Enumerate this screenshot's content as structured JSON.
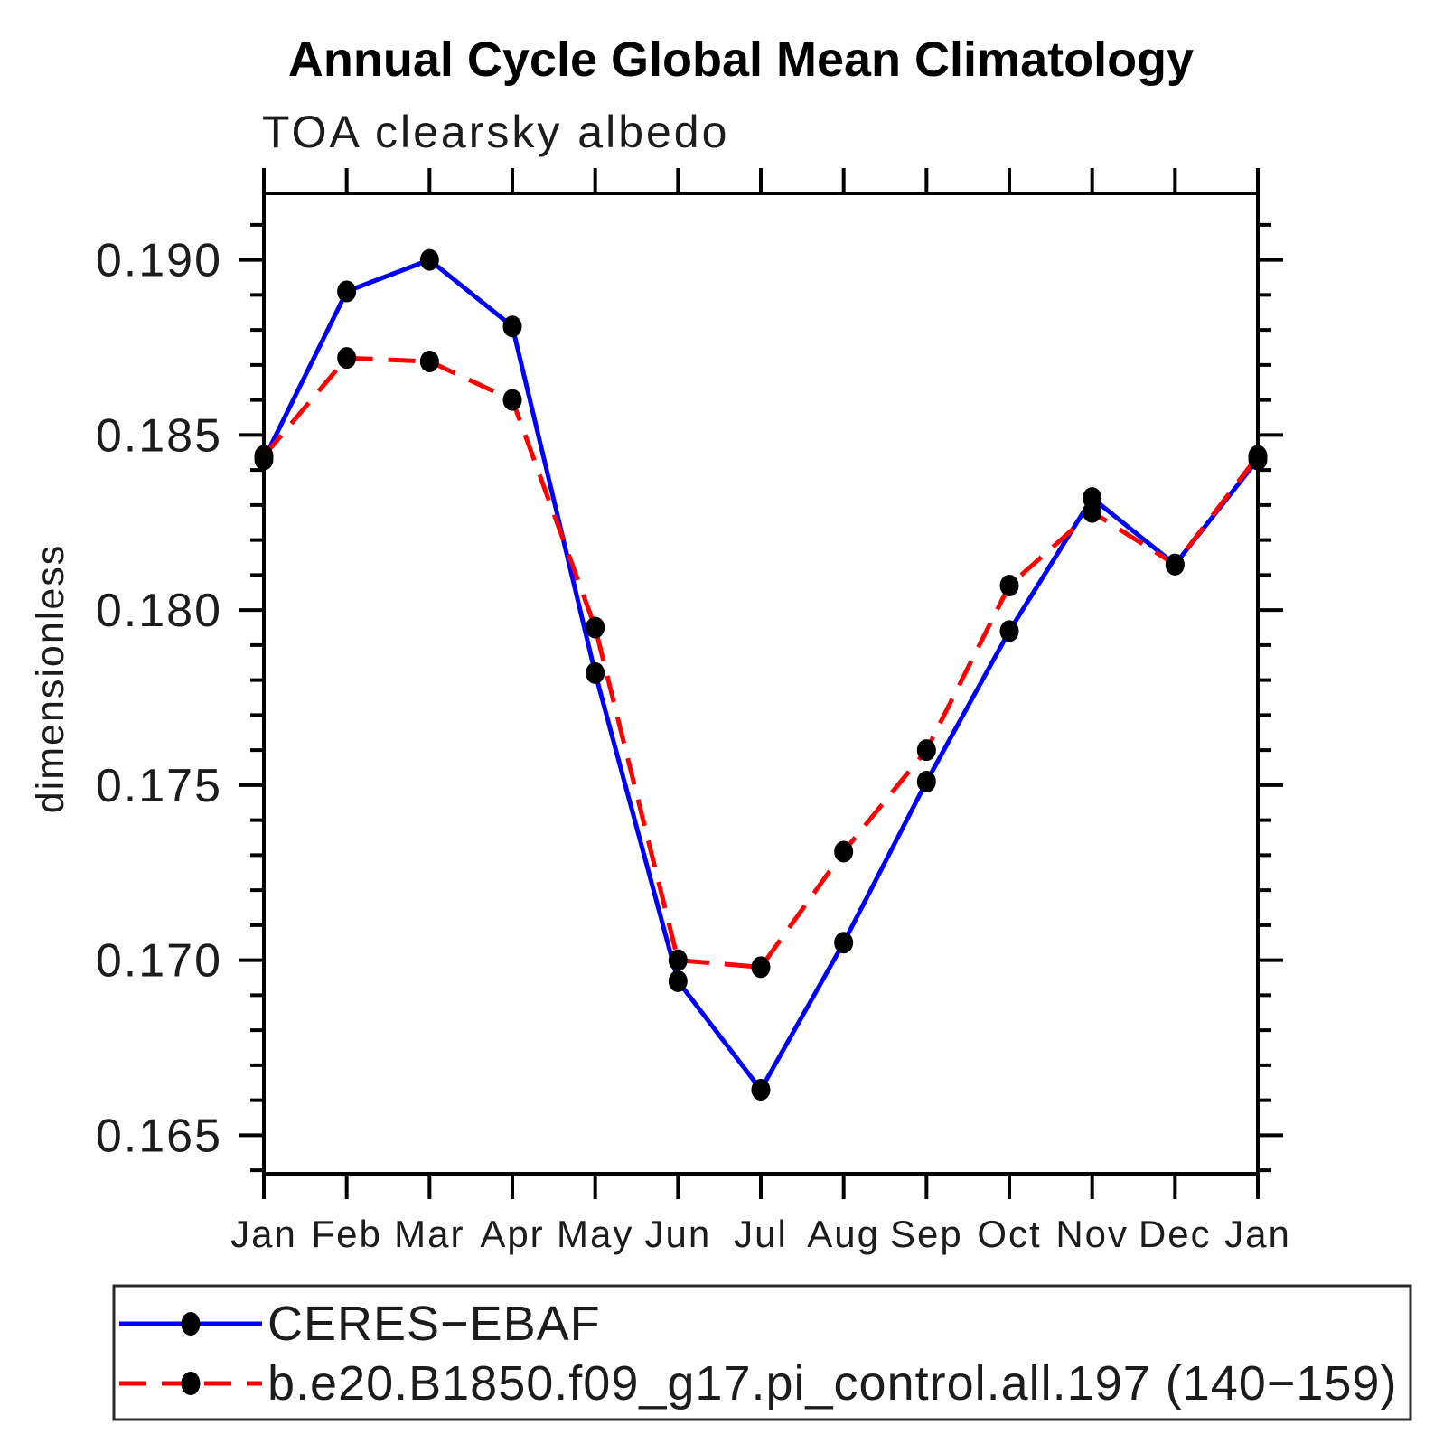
{
  "header": {
    "title": "Annual Cycle Global Mean Climatology",
    "subtitle": "TOA clearsky albedo"
  },
  "y_axis": {
    "label": "dimensionless",
    "major_tick_labels": [
      "0.165",
      "0.170",
      "0.175",
      "0.180",
      "0.185",
      "0.190"
    ]
  },
  "x_axis": {
    "labels": [
      "Jan",
      "Feb",
      "Mar",
      "Apr",
      "May",
      "Jun",
      "Jul",
      "Aug",
      "Sep",
      "Oct",
      "Nov",
      "Dec",
      "Jan"
    ]
  },
  "legend": {
    "entries": [
      {
        "label": "CERES−EBAF",
        "color": "#0000ff",
        "line_style": "solid",
        "marker": "filled-circle"
      },
      {
        "label": "b.e20.B1850.f09_g17.pi_control.all.197 (140−159)",
        "color": "#ff0000",
        "line_style": "dashed",
        "marker": "filled-circle"
      }
    ]
  },
  "colors": {
    "obs_line": "#0000ff",
    "model_line": "#ff0000",
    "marker": "#000000",
    "frame": "#000000",
    "background": "#ffffff"
  },
  "chart_data": {
    "type": "line",
    "title": "Annual Cycle Global Mean Climatology",
    "subtitle": "TOA clearsky albedo",
    "ylabel": "dimensionless",
    "xlabel": "",
    "x_categories": [
      "Jan",
      "Feb",
      "Mar",
      "Apr",
      "May",
      "Jun",
      "Jul",
      "Aug",
      "Sep",
      "Oct",
      "Nov",
      "Dec",
      "Jan"
    ],
    "series": [
      {
        "name": "CERES−EBAF",
        "color": "#0000ff",
        "line_style": "solid",
        "marker": "filled-circle",
        "marker_color": "#000000",
        "values": [
          0.1843,
          0.1891,
          0.19,
          0.1881,
          0.1782,
          0.1694,
          0.1663,
          0.1705,
          0.1751,
          0.1794,
          0.1832,
          0.1813,
          0.1843
        ]
      },
      {
        "name": "b.e20.B1850.f09_g17.pi_control.all.197 (140−159)",
        "color": "#ff0000",
        "line_style": "dashed",
        "marker": "filled-circle",
        "marker_color": "#000000",
        "values": [
          0.1844,
          0.1872,
          0.1871,
          0.186,
          0.1795,
          0.17,
          0.1698,
          0.1731,
          0.176,
          0.1807,
          0.1828,
          0.1813,
          0.1844
        ]
      }
    ],
    "ylim": [
      0.1639,
      0.1919
    ],
    "y_major_ticks": [
      0.165,
      0.17,
      0.175,
      0.18,
      0.185,
      0.19
    ],
    "y_minor_tick_step": 0.001,
    "y_minor_tick_range": [
      0.164,
      0.191
    ],
    "grid": false,
    "legend_position": "bottom-left-box"
  }
}
